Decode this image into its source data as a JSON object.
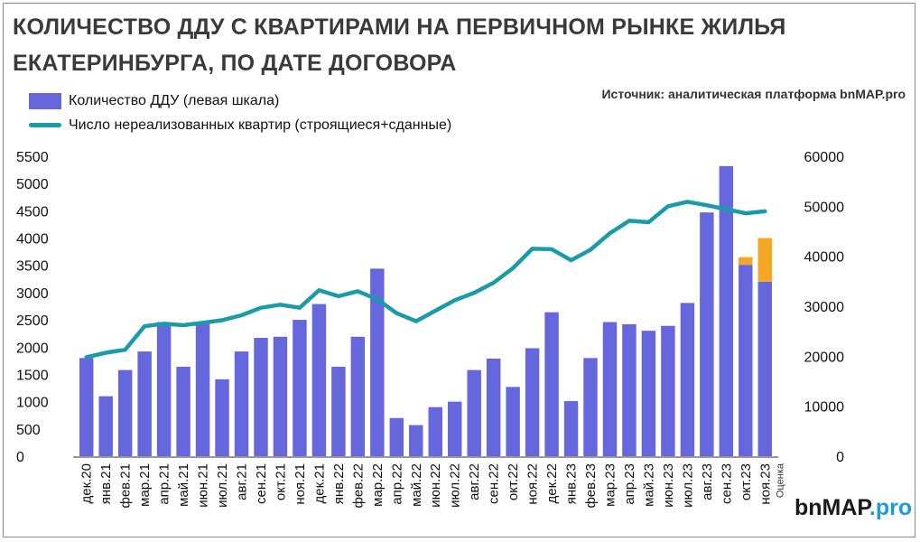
{
  "header": {
    "title_line1": "КОЛИЧЕСТВО ДДУ С КВАРТИРАМИ НА ПЕРВИЧНОМ РЫНКЕ ЖИЛЬЯ",
    "title_line2": "ЕКАТЕРИНБУРГА, ПО ДАТЕ ДОГОВОРА",
    "source": "Источник: аналитическая платформа bnMAP.pro"
  },
  "logo": {
    "part1": "bn",
    "part2": "MAP",
    "part3": ".pro"
  },
  "colors": {
    "bar": "#6666dd",
    "estimate": "#f5a623",
    "line": "#1b9aa8"
  },
  "chart_data": {
    "type": "bar",
    "categories": [
      "дек.20",
      "янв.21",
      "фев.21",
      "мар.21",
      "апр.21",
      "май.21",
      "июн.21",
      "июл.21",
      "авг.21",
      "сен.21",
      "окт.21",
      "ноя.21",
      "дек.21",
      "янв.22",
      "фев.22",
      "мар.22",
      "апр.22",
      "май.22",
      "июн.22",
      "июл.22",
      "авг.22",
      "сен.22",
      "окт.22",
      "ноя.22",
      "дек.22",
      "янв.23",
      "фев.23",
      "мар.23",
      "апр.23",
      "май.23",
      "июн.23",
      "июл.23",
      "авг.23",
      "сен.23",
      "окт.23",
      "ноя.23"
    ],
    "series": [
      {
        "name": "Количество ДДУ (левая шкала)",
        "axis": "left",
        "values": [
          1800,
          1100,
          1580,
          1920,
          2460,
          1640,
          2460,
          1410,
          1920,
          2170,
          2190,
          2500,
          2790,
          1640,
          2190,
          3440,
          700,
          570,
          900,
          1000,
          1580,
          1790,
          1270,
          1980,
          2640,
          1010,
          1800,
          2460,
          2420,
          2300,
          2390,
          2810,
          4470,
          5320,
          3510,
          3200
        ]
      },
      {
        "name": "Число нереализованных квартир (строящиеся+сданные)",
        "axis": "right",
        "type": "line",
        "values": [
          19800,
          20700,
          21300,
          26000,
          26500,
          26200,
          26700,
          27200,
          28200,
          29700,
          30300,
          29700,
          33200,
          32000,
          33000,
          31400,
          28600,
          27000,
          29100,
          31200,
          32700,
          34700,
          37600,
          41500,
          41400,
          39200,
          41300,
          44600,
          47100,
          46800,
          50000,
          50900,
          50200,
          49400,
          48600,
          49000
        ]
      }
    ],
    "estimate": {
      "category": "ноя.23",
      "base": 3200,
      "top": 4000,
      "label": "Оценка"
    },
    "estimate_extra": {
      "category": "окт.23",
      "base": 3510,
      "top": 3650
    },
    "y_left": {
      "min": 0,
      "max": 5500,
      "ticks": [
        0,
        500,
        1000,
        1500,
        2000,
        2500,
        3000,
        3500,
        4000,
        4500,
        5000,
        5500
      ]
    },
    "y_right": {
      "min": 0,
      "max": 60000,
      "ticks": [
        0,
        10000,
        20000,
        30000,
        40000,
        50000,
        60000
      ]
    },
    "grid": false,
    "legend": "top-left"
  }
}
